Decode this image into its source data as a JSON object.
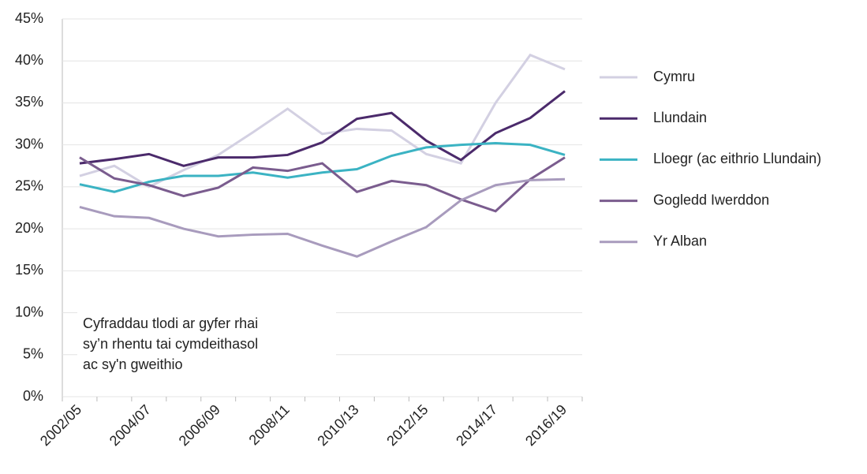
{
  "chart_data": {
    "type": "line",
    "categories": [
      "2002/05",
      null,
      "2004/07",
      null,
      "2006/09",
      null,
      "2008/11",
      null,
      "2010/13",
      null,
      "2012/15",
      null,
      "2014/17",
      null,
      "2016/19"
    ],
    "series": [
      {
        "name": "Cymru",
        "color": "#d3d0e2",
        "values": [
          26.3,
          27.5,
          25.0,
          27.0,
          28.8,
          31.5,
          34.3,
          31.3,
          31.9,
          31.7,
          28.9,
          27.8,
          35.0,
          40.7,
          39.0
        ]
      },
      {
        "name": "Llundain",
        "color": "#4b2a6b",
        "values": [
          27.8,
          28.3,
          28.9,
          27.5,
          28.5,
          28.5,
          28.8,
          30.3,
          33.1,
          33.8,
          30.5,
          28.2,
          31.4,
          33.2,
          36.4
        ]
      },
      {
        "name": "Lloegr (ac eithrio Llundain)",
        "color": "#3bb3c3",
        "values": [
          25.3,
          24.4,
          25.6,
          26.3,
          26.3,
          26.7,
          26.1,
          26.7,
          27.1,
          28.7,
          29.7,
          30.0,
          30.2,
          30.0,
          28.8
        ]
      },
      {
        "name": "Gogledd Iwerddon",
        "color": "#7a5c8e",
        "values": [
          28.5,
          26.0,
          25.2,
          23.9,
          24.9,
          27.3,
          26.9,
          27.8,
          24.4,
          25.7,
          25.2,
          23.5,
          22.1,
          25.9,
          28.5
        ]
      },
      {
        "name": "Yr Alban",
        "color": "#a89bbd",
        "values": [
          22.6,
          21.5,
          21.3,
          20.0,
          19.1,
          19.3,
          19.4,
          18.0,
          16.7,
          18.5,
          20.2,
          23.4,
          25.2,
          25.8,
          25.9
        ]
      }
    ],
    "ylim": [
      0,
      45
    ],
    "yticks": [
      {
        "value": 0,
        "label": "0%"
      },
      {
        "value": 5,
        "label": "5%"
      },
      {
        "value": 10,
        "label": "10%"
      },
      {
        "value": 15,
        "label": "15%"
      },
      {
        "value": 20,
        "label": "20%"
      },
      {
        "value": 25,
        "label": "25%"
      },
      {
        "value": 30,
        "label": "30%"
      },
      {
        "value": 35,
        "label": "35%"
      },
      {
        "value": 40,
        "label": "40%"
      },
      {
        "value": 45,
        "label": "45%"
      }
    ],
    "grid": true,
    "legend": "right",
    "annotation": [
      "Cyfraddau tlodi ar gyfer rhai",
      "sy’n rhentu tai cymdeithasol",
      "ac sy'n gweithio"
    ]
  }
}
